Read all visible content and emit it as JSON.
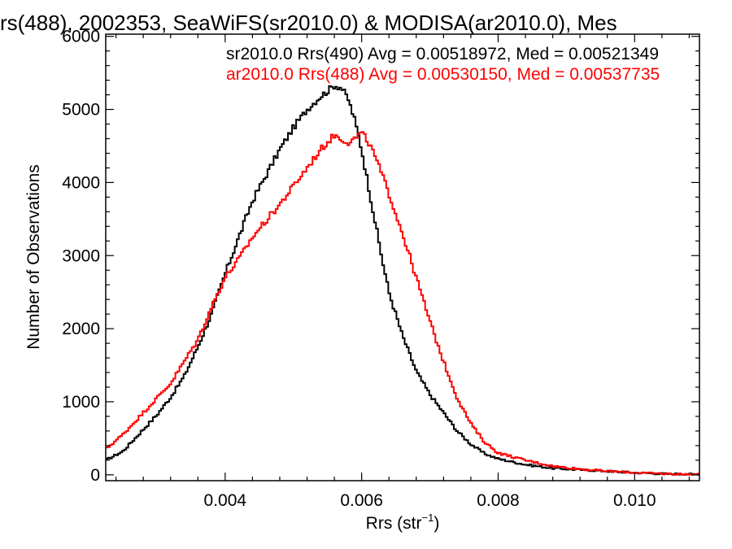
{
  "chart_data": {
    "type": "line",
    "title": "rs(488), 2002353, SeaWiFS(sr2010.0) & MODISA(ar2010.0), Mes",
    "xlabel_main": "Rrs (str",
    "xlabel_sup": "−1",
    "xlabel_tail": ")",
    "ylabel": "Number of Observations",
    "xlim": [
      0.00225,
      0.01095
    ],
    "ylim": [
      -80,
      6030
    ],
    "x_ticks": [
      0.004,
      0.006,
      0.008,
      0.01
    ],
    "x_tick_labels": [
      "0.004",
      "0.006",
      "0.008",
      "0.010"
    ],
    "y_ticks": [
      0,
      1000,
      2000,
      3000,
      4000,
      5000,
      6000
    ],
    "y_tick_labels": [
      "0",
      "1000",
      "2000",
      "3000",
      "4000",
      "5000",
      "6000"
    ],
    "grid": false,
    "legend_position": "top-right",
    "series": [
      {
        "name": "sr2010.0 Rrs(490) Avg = 0.00518972, Med = 0.00521349",
        "color": "#000000",
        "x": [
          0.00225,
          0.0025,
          0.0028,
          0.003,
          0.0032,
          0.0034,
          0.0036,
          0.0038,
          0.004,
          0.0042,
          0.0044,
          0.0046,
          0.0048,
          0.005,
          0.0052,
          0.0054,
          0.0055,
          0.0056,
          0.0057,
          0.0058,
          0.0059,
          0.006,
          0.0061,
          0.0062,
          0.0063,
          0.0064,
          0.0066,
          0.0068,
          0.007,
          0.0072,
          0.0074,
          0.0076,
          0.0078,
          0.008,
          0.0084,
          0.0088,
          0.0092,
          0.0096,
          0.01,
          0.0104,
          0.01095
        ],
        "values": [
          200,
          320,
          620,
          820,
          1060,
          1350,
          1750,
          2200,
          2750,
          3250,
          3750,
          4100,
          4450,
          4750,
          5000,
          5180,
          5250,
          5330,
          5300,
          5150,
          4850,
          4450,
          3950,
          3450,
          2950,
          2500,
          1900,
          1420,
          1100,
          850,
          600,
          420,
          290,
          220,
          140,
          90,
          70,
          50,
          30,
          15,
          5
        ]
      },
      {
        "name": "ar2010.0 Rrs(488) Avg = 0.00530150, Med = 0.00537735",
        "color": "#ff0000",
        "x": [
          0.00225,
          0.0025,
          0.0028,
          0.003,
          0.0032,
          0.0034,
          0.0036,
          0.0038,
          0.004,
          0.0042,
          0.0044,
          0.0046,
          0.0048,
          0.005,
          0.0052,
          0.0054,
          0.0055,
          0.0056,
          0.0057,
          0.0058,
          0.0059,
          0.006,
          0.0061,
          0.0062,
          0.0063,
          0.0064,
          0.0066,
          0.0068,
          0.007,
          0.0072,
          0.0074,
          0.0076,
          0.0078,
          0.008,
          0.0084,
          0.0088,
          0.0092,
          0.0096,
          0.01,
          0.0104,
          0.01095
        ],
        "values": [
          350,
          550,
          850,
          1050,
          1250,
          1550,
          1850,
          2300,
          2700,
          2950,
          3250,
          3480,
          3700,
          3950,
          4200,
          4450,
          4550,
          4650,
          4600,
          4550,
          4600,
          4680,
          4550,
          4350,
          4100,
          3850,
          3300,
          2700,
          2100,
          1550,
          1050,
          700,
          450,
          300,
          200,
          120,
          80,
          50,
          30,
          15,
          5
        ]
      }
    ]
  }
}
